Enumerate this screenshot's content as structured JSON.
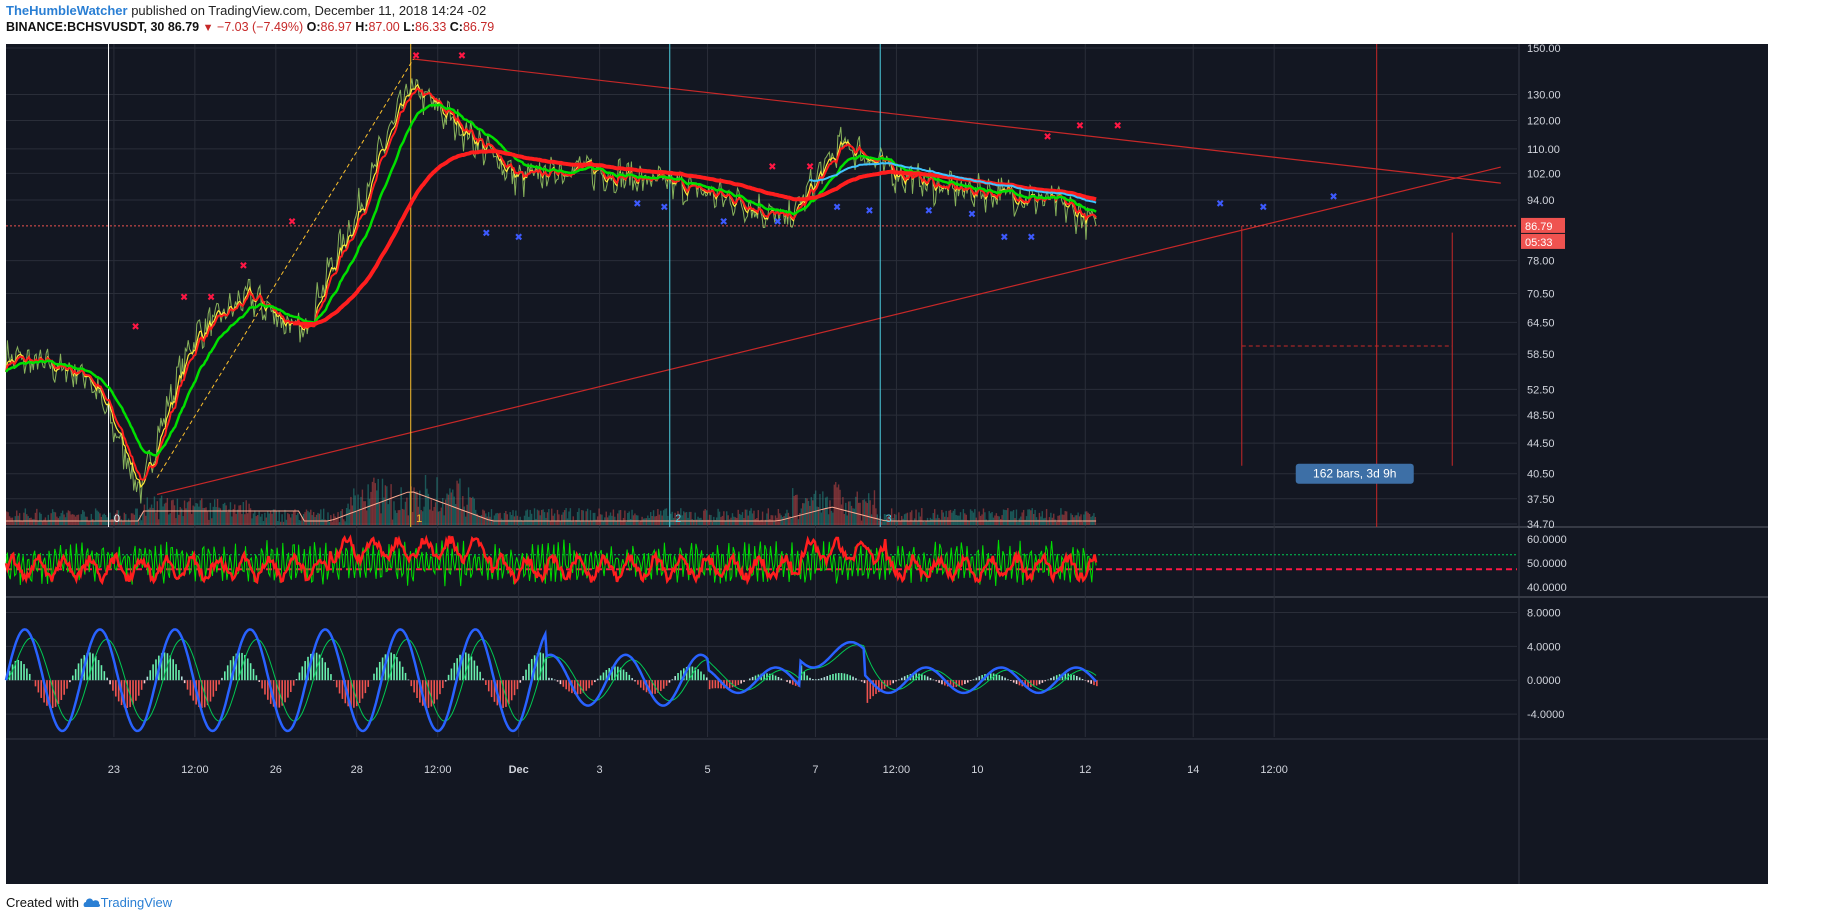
{
  "header": {
    "author": "TheHumbleWatcher",
    "published": " published on TradingView.com, December 11, 2018 14:24 -02",
    "symbol": "BINANCE:BCHSVUSDT, 30",
    "last": " 86.79 ",
    "arrow": "▼",
    "change": " −7.03 (−7.49%)",
    "o_label": " O:",
    "o_value": "86.97",
    "h_label": " H:",
    "h_value": "87.00",
    "l_label": " L:",
    "l_value": "86.33",
    "c_label": " C:",
    "c_value": "86.79"
  },
  "footer": {
    "created_with": "Created with",
    "brand": "TradingView"
  },
  "colors": {
    "background": "#131722",
    "grid": "#2a2e39",
    "axis_text": "#d1d4dc",
    "price_bg_label": "#ef5350",
    "wave_yellow": "#fff176",
    "wave_cyan": "#4dd0e1",
    "trend_red": "#c62828",
    "ma_red": "#ff1e1e",
    "ma_green": "#00e000",
    "ma_cyan": "#40c4ff",
    "badge": "#3d6fa6"
  },
  "chart_data": [
    {
      "type": "line",
      "name": "price",
      "y_axis_ticks": [
        "150.00",
        "130.00",
        "120.00",
        "110.00",
        "102.00",
        "94.00",
        "78.00",
        "70.50",
        "64.50",
        "58.50",
        "52.50",
        "48.50",
        "44.50",
        "40.50",
        "37.50",
        "34.70"
      ],
      "x_axis_ticks": [
        "23",
        "12:00",
        "26",
        "28",
        "12:00",
        "Dec",
        "3",
        "5",
        "7",
        "12:00",
        "10",
        "12",
        "14",
        "12:00"
      ],
      "last_price_label": "86.79",
      "countdown_label": "05:33",
      "wave_labels": [
        "0",
        "1",
        "2",
        "3"
      ],
      "measure_badge": "162 bars, 3d 9h",
      "ylim": [
        34.7,
        150
      ],
      "x": [
        0,
        1.5,
        2.5,
        3.5,
        4.5,
        5.5,
        6.5,
        7.5,
        8.5,
        9.5,
        10.5,
        11.5,
        12.5,
        13.5,
        14.5,
        15.5,
        16.5,
        17.5,
        18.5,
        19.5,
        20.2
      ],
      "values": [
        58,
        55,
        38,
        62,
        70,
        62,
        90,
        133,
        116,
        100,
        104,
        101,
        98,
        94,
        88,
        112,
        102,
        97,
        96,
        93,
        86.79
      ]
    },
    {
      "type": "line",
      "name": "rsi",
      "y_axis_ticks": [
        "60.0000",
        "50.0000",
        "40.0000"
      ],
      "ylim": [
        38,
        63
      ],
      "levels": [
        53.5,
        47.5
      ]
    },
    {
      "type": "bar",
      "name": "macd",
      "y_axis_ticks": [
        "8.0000",
        "4.0000",
        "0.0000",
        "-4.0000"
      ],
      "ylim": [
        -6,
        9
      ]
    }
  ]
}
